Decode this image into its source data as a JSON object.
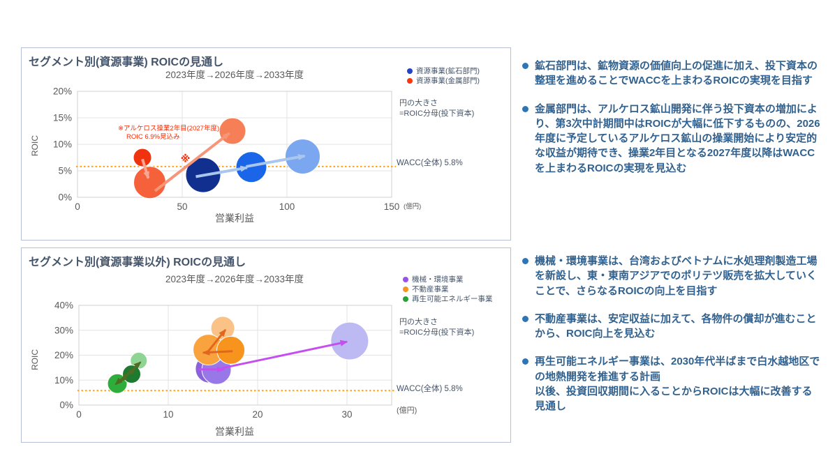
{
  "page": {
    "background": "#FFFFFF"
  },
  "chart_data": [
    {
      "type": "scatter",
      "variant": "bubble",
      "title": "セグメント別(資源事業) ROICの見通し",
      "subtitle": "2023年度→2026年度→2033年度",
      "xlabel": "営業利益",
      "x_unit": "(億円)",
      "x_unit_inline": true,
      "ylabel": "ROIC",
      "xlim": [
        0,
        150
      ],
      "ylim": [
        0,
        20
      ],
      "xticks": [
        0,
        50,
        100,
        150
      ],
      "yticks": [
        0,
        5,
        10,
        15,
        20
      ],
      "ytick_suffix": "%",
      "grid": true,
      "legend_position": "top-right",
      "wacc_line": {
        "value": 5.8,
        "label": "WACC(全体) 5.8%",
        "color": "#FFA216"
      },
      "legend": [
        {
          "label": "資源事業(鉱石部門)",
          "color": "#2242C8"
        },
        {
          "label": "資源事業(金属部門)",
          "color": "#F5360F"
        }
      ],
      "bubble_size_note": [
        "円の大きさ",
        "=ROIC分母(投下資本)"
      ],
      "annotation": {
        "lines": [
          "※アルケロス操業2年目(2027年度)",
          "ROIC 6.9%見込み"
        ],
        "marker": "※",
        "marker_x": 51.5,
        "marker_y": 7.3,
        "color": "#FF2A00"
      },
      "series": [
        {
          "name": "資源事業(鉱石部門)",
          "years": [
            "2023年度",
            "2026年度",
            "2033年度"
          ],
          "points": [
            {
              "x": 60,
              "y": 4.2,
              "r": 25,
              "color": "#112F8F"
            },
            {
              "x": 83,
              "y": 5.7,
              "r": 22,
              "color": "#1B66E8"
            },
            {
              "x": 107.5,
              "y": 7.7,
              "r": 25,
              "color": "#7BA7F0"
            }
          ],
          "arrows": [
            {
              "x1": 56.5,
              "y1": 3.9,
              "x2": 81,
              "y2": 5.6,
              "color": "#A9C7EE",
              "w": 4
            },
            {
              "x1": 80.5,
              "y1": 5.8,
              "x2": 108.5,
              "y2": 7.8,
              "color": "#A9C7EE",
              "w": 4
            }
          ]
        },
        {
          "name": "資源事業(金属部門)",
          "years": [
            "2023年度",
            "2026年度",
            "2033年度"
          ],
          "points": [
            {
              "x": 31,
              "y": 7.5,
              "r": 13,
              "color": "#F0330F"
            },
            {
              "x": 34.5,
              "y": 2.8,
              "r": 23,
              "color": "#F4613A"
            },
            {
              "x": 74,
              "y": 12.5,
              "r": 19,
              "color": "#F67F57"
            }
          ],
          "arrows": [
            {
              "x1": 31,
              "y1": 7.2,
              "x2": 33.8,
              "y2": 3.6,
              "color": "#F8A693",
              "w": 4
            },
            {
              "x1": 37,
              "y1": 1.2,
              "x2": 72.5,
              "y2": 12.1,
              "color": "#F69578",
              "w": 4
            }
          ]
        }
      ]
    },
    {
      "type": "scatter",
      "variant": "bubble",
      "title": "セグメント別(資源事業以外) ROICの見通し",
      "subtitle": "2023年度→2026年度→2033年度",
      "xlabel": "営業利益",
      "x_unit": "(億円)",
      "x_unit_inline": false,
      "ylabel": "ROIC",
      "xlim": [
        0,
        35
      ],
      "ylim": [
        0,
        40
      ],
      "xticks": [
        0,
        10,
        20,
        30
      ],
      "yticks": [
        0,
        10,
        20,
        30,
        40
      ],
      "ytick_suffix": "%",
      "grid": true,
      "legend_position": "top-right",
      "wacc_line": {
        "value": 5.8,
        "label": "WACC(全体) 5.8%",
        "color": "#FFA216"
      },
      "legend": [
        {
          "label": "機械・環境事業",
          "color": "#9B51E8"
        },
        {
          "label": "不動産事業",
          "color": "#F7941D"
        },
        {
          "label": "再生可能エネルギー事業",
          "color": "#2BA037"
        }
      ],
      "bubble_size_note": [
        "円の大きさ",
        "=ROIC分母(投下資本)"
      ],
      "series": [
        {
          "name": "機械・環境事業",
          "years": [
            "2023年度",
            "2026年度",
            "2033年度"
          ],
          "points": [
            {
              "x": 14.6,
              "y": 14.5,
              "r": 20,
              "color": "#8A62DA"
            },
            {
              "x": 15.4,
              "y": 14.2,
              "r": 21,
              "color": "#9878E8"
            },
            {
              "x": 30.3,
              "y": 25.7,
              "r": 27,
              "color": "#BDB9F2"
            }
          ],
          "arrows": [
            {
              "x1": 13.4,
              "y1": 14.3,
              "x2": 16.2,
              "y2": 14.3,
              "color": "#C44FEE",
              "w": 3
            },
            {
              "x1": 16.0,
              "y1": 14.8,
              "x2": 30.0,
              "y2": 25.4,
              "color": "#C44FEE",
              "w": 3
            }
          ]
        },
        {
          "name": "不動産事業",
          "years": [
            "2033年度",
            "2026年度",
            "2023年度"
          ],
          "points": [
            {
              "x": 16.1,
              "y": 30.8,
              "r": 17,
              "color": "#FAC287"
            },
            {
              "x": 14.5,
              "y": 22.2,
              "r": 22,
              "color": "#F9A33F"
            },
            {
              "x": 17.0,
              "y": 22.0,
              "r": 20,
              "color": "#F7941D"
            }
          ],
          "arrows": [
            {
              "x1": 17.2,
              "y1": 21.6,
              "x2": 13.9,
              "y2": 21.0,
              "color": "#E2661C",
              "w": 3
            },
            {
              "x1": 14.3,
              "y1": 20.8,
              "x2": 16.4,
              "y2": 30.2,
              "color": "#E2661C",
              "w": 3
            }
          ]
        },
        {
          "name": "再生可能エネルギー事業",
          "years": [
            "2023年度",
            "2033年度",
            "2026年度"
          ],
          "points": [
            {
              "x": 4.3,
              "y": 8.6,
              "r": 14,
              "color": "#2EAD3C"
            },
            {
              "x": 6.7,
              "y": 17.8,
              "r": 12,
              "color": "#90D493"
            },
            {
              "x": 5.9,
              "y": 12.4,
              "r": 13,
              "color": "#1E7A2E"
            }
          ],
          "arrows": [
            {
              "x1": 4.1,
              "y1": 8.3,
              "x2": 6.9,
              "y2": 17.2,
              "color": "#4F6B24",
              "w": 2.5,
              "double": true
            },
            {
              "x1": 6.3,
              "y1": 14.8,
              "x2": 4.7,
              "y2": 9.6,
              "color": "#4F6B24",
              "w": 2.5,
              "double": true
            }
          ]
        }
      ]
    }
  ],
  "right_column": {
    "bullet_color": "#2E75B6",
    "sections": [
      {
        "bullets": [
          {
            "lines": [
              "鉱石部門は、鉱物資源の価値向上の促進に加え、投下資本の整理を進めることでWACCを上まわるROICの実現を目指す"
            ]
          },
          {
            "lines": [
              "金属部門は、アルケロス鉱山開発に伴う投下資本の増加により、第3次中計期間中はROICが大幅に低下するものの、2026年度に予定しているアルケロス鉱山の操業開始により安定的な収益が期待でき、操業2年目となる2027年度以降はWACCを上まわるROICの実現を見込む"
            ]
          }
        ]
      },
      {
        "bullets": [
          {
            "lines": [
              "機械・環境事業は、台湾およびベトナムに水処理剤製造工場を新設し、東・東南アジアでのポリテツ販売を拡大していくことで、さらなるROICの向上を目指す"
            ]
          },
          {
            "lines": [
              "不動産事業は、安定収益に加えて、各物件の償却が進むことから、ROIC向上を見込む"
            ]
          },
          {
            "lines": [
              "再生可能エネルギー事業は、2030年代半ばまで白水越地区での地熱開発を推進する計画",
              "以後、投資回収期間に入ることからROICは大幅に改善する見通し"
            ]
          }
        ]
      }
    ]
  }
}
